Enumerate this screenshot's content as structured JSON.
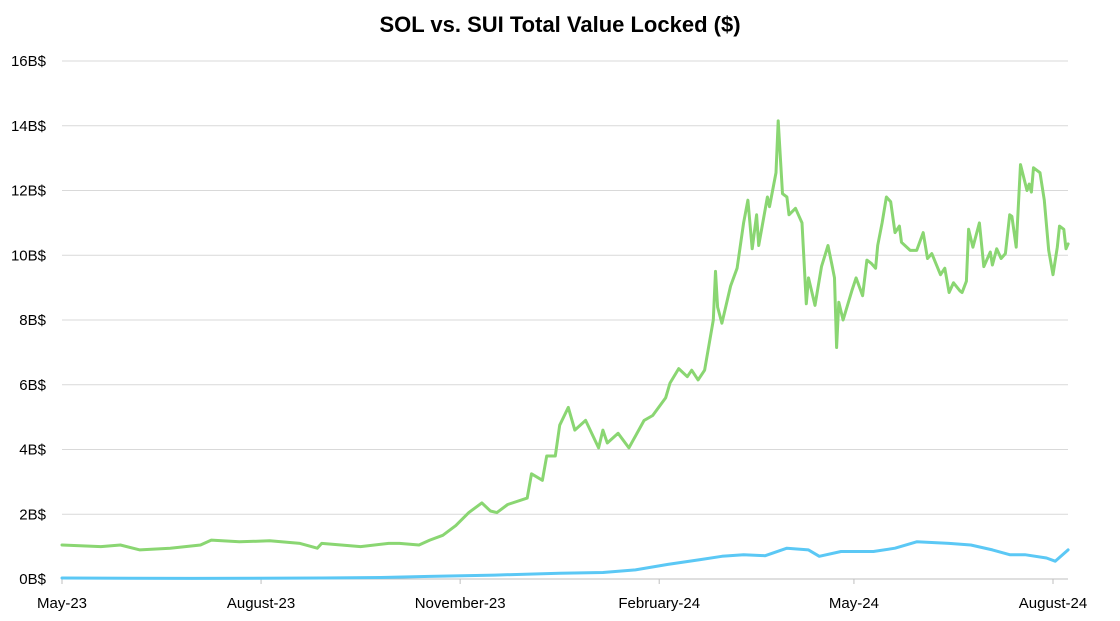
{
  "chart_data": {
    "type": "line",
    "title": "SOL vs. SUI Total Value Locked ($)",
    "xlabel": "",
    "ylabel": "",
    "x_unit": "days since 1 May 2023",
    "xlim": [
      0,
      465
    ],
    "ylim": [
      0,
      16
    ],
    "grid": true,
    "y_ticks": [
      {
        "value": 0,
        "label": "0B$"
      },
      {
        "value": 2,
        "label": "2B$"
      },
      {
        "value": 4,
        "label": "4B$"
      },
      {
        "value": 6,
        "label": "6B$"
      },
      {
        "value": 8,
        "label": "8B$"
      },
      {
        "value": 10,
        "label": "10B$"
      },
      {
        "value": 12,
        "label": "12B$"
      },
      {
        "value": 14,
        "label": "14B$"
      },
      {
        "value": 16,
        "label": "16B$"
      }
    ],
    "x_ticks": [
      {
        "value": 0,
        "label": "May-23"
      },
      {
        "value": 92,
        "label": "August-23"
      },
      {
        "value": 184,
        "label": "November-23"
      },
      {
        "value": 276,
        "label": "February-24"
      },
      {
        "value": 366,
        "label": "May-24"
      },
      {
        "value": 458,
        "label": "August-24"
      }
    ],
    "series": [
      {
        "name": "SOL",
        "color": "#8ad672",
        "points": [
          [
            0,
            1.05
          ],
          [
            18,
            1.0
          ],
          [
            27,
            1.05
          ],
          [
            36,
            0.9
          ],
          [
            50,
            0.95
          ],
          [
            64,
            1.05
          ],
          [
            69,
            1.2
          ],
          [
            82,
            1.15
          ],
          [
            96,
            1.18
          ],
          [
            110,
            1.1
          ],
          [
            118,
            0.95
          ],
          [
            120,
            1.1
          ],
          [
            138,
            1.0
          ],
          [
            151,
            1.1
          ],
          [
            156,
            1.1
          ],
          [
            165,
            1.05
          ],
          [
            170,
            1.2
          ],
          [
            176,
            1.35
          ],
          [
            182,
            1.65
          ],
          [
            188,
            2.05
          ],
          [
            194,
            2.35
          ],
          [
            198,
            2.1
          ],
          [
            201,
            2.05
          ],
          [
            206,
            2.3
          ],
          [
            215,
            2.5
          ],
          [
            217,
            3.25
          ],
          [
            222,
            3.05
          ],
          [
            224,
            3.8
          ],
          [
            228,
            3.8
          ],
          [
            230,
            4.75
          ],
          [
            234,
            5.3
          ],
          [
            237,
            4.6
          ],
          [
            242,
            4.9
          ],
          [
            248,
            4.05
          ],
          [
            250,
            4.6
          ],
          [
            252,
            4.2
          ],
          [
            257,
            4.5
          ],
          [
            262,
            4.05
          ],
          [
            269,
            4.9
          ],
          [
            273,
            5.05
          ],
          [
            279,
            5.6
          ],
          [
            281,
            6.05
          ],
          [
            285,
            6.5
          ],
          [
            289,
            6.25
          ],
          [
            291,
            6.45
          ],
          [
            294,
            6.15
          ],
          [
            297,
            6.45
          ],
          [
            301,
            8.0
          ],
          [
            302,
            9.5
          ],
          [
            303,
            8.4
          ],
          [
            305,
            7.9
          ],
          [
            309,
            9.05
          ],
          [
            312,
            9.6
          ],
          [
            315,
            11.0
          ],
          [
            317,
            11.7
          ],
          [
            319,
            10.2
          ],
          [
            321,
            11.25
          ],
          [
            322,
            10.3
          ],
          [
            326,
            11.8
          ],
          [
            327,
            11.5
          ],
          [
            330,
            12.55
          ],
          [
            331,
            14.15
          ],
          [
            333,
            11.9
          ],
          [
            335,
            11.8
          ],
          [
            336,
            11.25
          ],
          [
            339,
            11.45
          ],
          [
            342,
            11.0
          ],
          [
            344,
            8.5
          ],
          [
            345,
            9.3
          ],
          [
            348,
            8.45
          ],
          [
            351,
            9.65
          ],
          [
            354,
            10.3
          ],
          [
            356,
            9.65
          ],
          [
            357,
            9.3
          ],
          [
            358,
            7.15
          ],
          [
            359,
            8.55
          ],
          [
            361,
            8.0
          ],
          [
            365,
            8.9
          ],
          [
            367,
            9.3
          ],
          [
            370,
            8.75
          ],
          [
            372,
            9.85
          ],
          [
            374,
            9.75
          ],
          [
            376,
            9.6
          ],
          [
            377,
            10.3
          ],
          [
            379,
            11.0
          ],
          [
            381,
            11.8
          ],
          [
            383,
            11.65
          ],
          [
            385,
            10.7
          ],
          [
            387,
            10.9
          ],
          [
            388,
            10.4
          ],
          [
            392,
            10.15
          ],
          [
            395,
            10.15
          ],
          [
            398,
            10.7
          ],
          [
            400,
            9.9
          ],
          [
            402,
            10.05
          ],
          [
            406,
            9.4
          ],
          [
            408,
            9.6
          ],
          [
            410,
            8.85
          ],
          [
            412,
            9.15
          ],
          [
            415,
            8.9
          ],
          [
            416,
            8.85
          ],
          [
            418,
            9.2
          ],
          [
            419,
            10.8
          ],
          [
            421,
            10.25
          ],
          [
            424,
            11.0
          ],
          [
            426,
            9.65
          ],
          [
            429,
            10.1
          ],
          [
            430,
            9.7
          ],
          [
            432,
            10.2
          ],
          [
            434,
            9.9
          ],
          [
            436,
            10.05
          ],
          [
            438,
            11.25
          ],
          [
            439,
            11.2
          ],
          [
            441,
            10.25
          ],
          [
            443,
            12.8
          ],
          [
            446,
            12.0
          ],
          [
            447,
            12.2
          ],
          [
            448,
            11.95
          ],
          [
            449,
            12.7
          ],
          [
            452,
            12.55
          ],
          [
            454,
            11.7
          ],
          [
            456,
            10.15
          ],
          [
            458,
            9.4
          ],
          [
            460,
            10.25
          ],
          [
            461,
            10.9
          ],
          [
            463,
            10.8
          ],
          [
            464,
            10.2
          ],
          [
            465,
            10.35
          ]
        ]
      },
      {
        "name": "SUI",
        "color": "#5bc8f5",
        "points": [
          [
            0,
            0.03
          ],
          [
            60,
            0.02
          ],
          [
            120,
            0.03
          ],
          [
            150,
            0.05
          ],
          [
            170,
            0.08
          ],
          [
            200,
            0.12
          ],
          [
            230,
            0.18
          ],
          [
            250,
            0.2
          ],
          [
            265,
            0.28
          ],
          [
            280,
            0.45
          ],
          [
            295,
            0.6
          ],
          [
            305,
            0.7
          ],
          [
            315,
            0.75
          ],
          [
            325,
            0.72
          ],
          [
            335,
            0.95
          ],
          [
            345,
            0.9
          ],
          [
            350,
            0.7
          ],
          [
            360,
            0.85
          ],
          [
            375,
            0.85
          ],
          [
            385,
            0.95
          ],
          [
            395,
            1.15
          ],
          [
            410,
            1.1
          ],
          [
            420,
            1.05
          ],
          [
            430,
            0.9
          ],
          [
            438,
            0.75
          ],
          [
            445,
            0.75
          ],
          [
            455,
            0.65
          ],
          [
            459,
            0.55
          ],
          [
            465,
            0.9
          ]
        ]
      }
    ]
  }
}
